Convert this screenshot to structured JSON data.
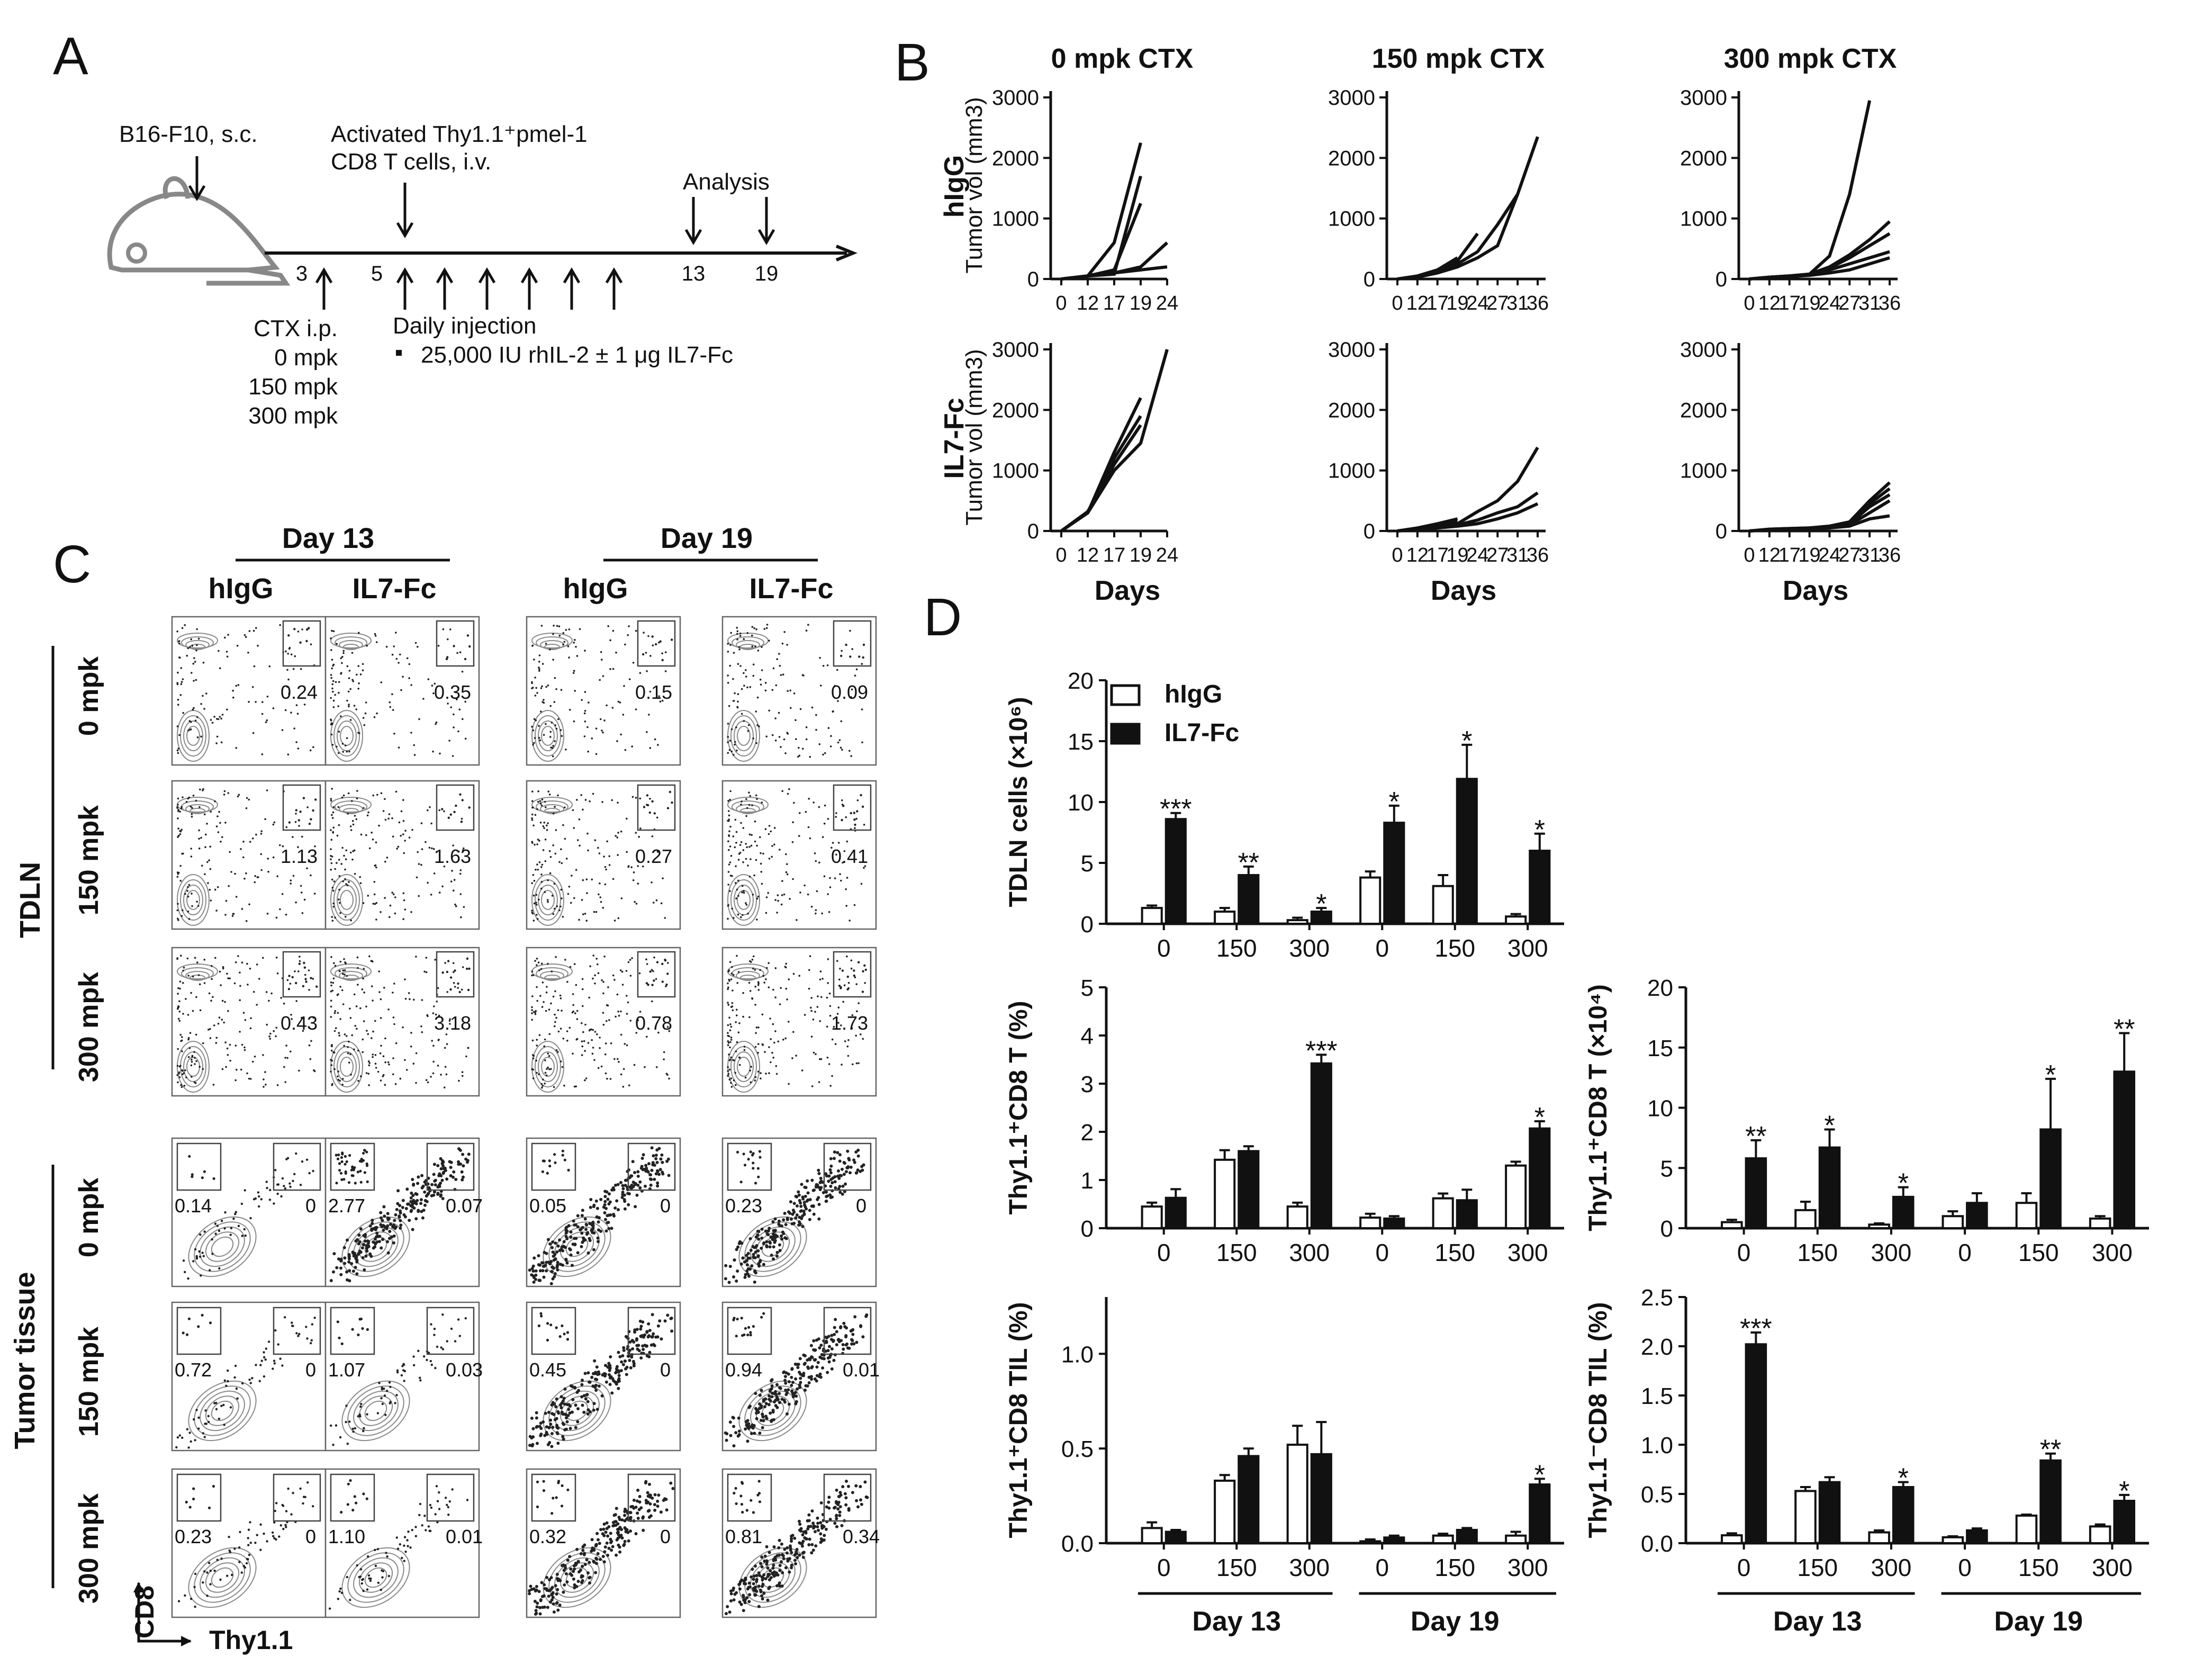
{
  "panelA": {
    "letter": "A",
    "tumor_label": "B16-F10, s.c.",
    "tcell_label_1": "Activated Thy1.1⁺pmel-1",
    "tcell_label_2": "CD8 T cells, i.v.",
    "analysis_label": "Analysis",
    "days": [
      "3",
      "5",
      "13",
      "19"
    ],
    "ctx_lines": [
      "CTX i.p.",
      "0 mpk",
      "150 mpk",
      "300 mpk"
    ],
    "daily_title": "Daily injection",
    "daily_item": "25,000 IU rhIL-2 ± 1 μg IL7-Fc"
  },
  "panelB": {
    "letter": "B",
    "col_titles": [
      "0 mpk CTX",
      "150 mpk CTX",
      "300 mpk CTX"
    ],
    "row_labels": [
      "hIgG",
      "IL7-Fc"
    ],
    "xlabel": "Days"
  },
  "panelC": {
    "letter": "C",
    "day_labels": [
      "Day 13",
      "Day 19"
    ],
    "col_labels": [
      "hIgG",
      "IL7-Fc",
      "hIgG",
      "IL7-Fc"
    ],
    "dose_labels": [
      "0 mpk",
      "150 mpk",
      "300 mpk"
    ],
    "group_labels": [
      "TDLN",
      "Tumor tissue"
    ],
    "y_axis_label": "CD8",
    "x_axis_label": "Thy1.1",
    "tdln_values": [
      [
        "0.24",
        "0.35",
        "0.15",
        "0.09"
      ],
      [
        "1.13",
        "1.63",
        "0.27",
        "0.41"
      ],
      [
        "0.43",
        "3.18",
        "0.78",
        "1.73"
      ]
    ],
    "tumor_left_values": [
      [
        "0.14",
        "2.77",
        "0.05",
        "0.23"
      ],
      [
        "0.72",
        "1.07",
        "0.45",
        "0.94"
      ],
      [
        "0.23",
        "1.10",
        "0.32",
        "0.81"
      ]
    ],
    "tumor_right_values": [
      [
        "0",
        "0.07",
        "0",
        "0"
      ],
      [
        "0",
        "0.03",
        "0",
        "0.01"
      ],
      [
        "0",
        "0.01",
        "0",
        "0.34"
      ]
    ]
  },
  "panelD": {
    "letter": "D",
    "legend": [
      "hIgG",
      "IL7-Fc"
    ],
    "day_labels": [
      "Day 13",
      "Day 19"
    ]
  },
  "chart_data": [
    {
      "type": "line",
      "id": "B-hIgG-0mpk",
      "title": "0 mpk CTX",
      "ylabel": "Tumor vol (mm3)",
      "xlabel": "",
      "x_ticks": [
        "0",
        "12",
        "17",
        "19",
        "24"
      ],
      "ylim": [
        0,
        3000
      ],
      "y_ticks": [
        "0",
        "1000",
        "2000",
        "3000"
      ],
      "series": [
        {
          "values": [
            0,
            50,
            150,
            1250
          ]
        },
        {
          "values": [
            0,
            50,
            600,
            2250
          ]
        },
        {
          "values": [
            0,
            50,
            80,
            1700
          ]
        },
        {
          "values": [
            0,
            50,
            100,
            200,
            600
          ]
        },
        {
          "values": [
            0,
            50,
            100,
            150,
            200
          ]
        }
      ]
    },
    {
      "type": "line",
      "id": "B-hIgG-150mpk",
      "title": "150 mpk CTX",
      "ylabel": "",
      "xlabel": "",
      "x_ticks": [
        "0",
        "12",
        "17",
        "19",
        "24",
        "27",
        "31",
        "36"
      ],
      "ylim": [
        0,
        3000
      ],
      "y_ticks": [
        "0",
        "1000",
        "2000",
        "3000"
      ],
      "series": [
        {
          "values": [
            0,
            40,
            120,
            250,
            450,
            900,
            1400,
            2350
          ]
        },
        {
          "values": [
            0,
            50,
            150,
            300,
            750
          ]
        },
        {
          "values": [
            0,
            30,
            100,
            200,
            350,
            550,
            1400
          ]
        },
        {
          "values": [
            0,
            40,
            150,
            350
          ]
        }
      ]
    },
    {
      "type": "line",
      "id": "B-hIgG-300mpk",
      "title": "300 mpk CTX",
      "ylabel": "",
      "xlabel": "",
      "x_ticks": [
        "0",
        "12",
        "17",
        "19",
        "24",
        "27",
        "31",
        "36"
      ],
      "ylim": [
        0,
        3000
      ],
      "y_ticks": [
        "0",
        "1000",
        "2000",
        "3000"
      ],
      "series": [
        {
          "values": [
            0,
            30,
            50,
            80,
            380,
            1400,
            2950
          ]
        },
        {
          "values": [
            0,
            30,
            50,
            80,
            200,
            400,
            650,
            950
          ]
        },
        {
          "values": [
            0,
            30,
            50,
            80,
            180,
            350,
            550,
            750
          ]
        },
        {
          "values": [
            0,
            30,
            50,
            70,
            150,
            250,
            350,
            450
          ]
        },
        {
          "values": [
            0,
            30,
            40,
            60,
            100,
            150,
            250,
            350
          ]
        }
      ]
    },
    {
      "type": "line",
      "id": "B-IL7Fc-0mpk",
      "title": "",
      "ylabel": "Tumor vol (mm3)",
      "xlabel": "Days",
      "x_ticks": [
        "0",
        "12",
        "17",
        "19",
        "24"
      ],
      "ylim": [
        0,
        3000
      ],
      "y_ticks": [
        "0",
        "1000",
        "2000",
        "3000"
      ],
      "series": [
        {
          "values": [
            0,
            300,
            1300,
            2200
          ]
        },
        {
          "values": [
            0,
            300,
            1200,
            1900
          ]
        },
        {
          "values": [
            0,
            320,
            1100,
            1750
          ]
        },
        {
          "values": [
            0,
            300,
            1000,
            1450,
            3000
          ]
        }
      ]
    },
    {
      "type": "line",
      "id": "B-IL7Fc-150mpk",
      "title": "",
      "ylabel": "",
      "xlabel": "Days",
      "x_ticks": [
        "0",
        "12",
        "17",
        "19",
        "24",
        "27",
        "31",
        "36"
      ],
      "ylim": [
        0,
        3000
      ],
      "y_ticks": [
        "0",
        "1000",
        "2000",
        "3000"
      ],
      "series": [
        {
          "values": [
            0,
            50,
            120,
            200
          ]
        },
        {
          "values": [
            0,
            40,
            100,
            150
          ]
        },
        {
          "values": [
            0,
            30,
            80,
            120,
            320,
            500,
            820,
            1380
          ]
        },
        {
          "values": [
            0,
            30,
            60,
            100,
            180,
            300,
            400,
            630
          ]
        },
        {
          "values": [
            0,
            20,
            50,
            80,
            120,
            200,
            300,
            450
          ]
        }
      ]
    },
    {
      "type": "line",
      "id": "B-IL7Fc-300mpk",
      "title": "",
      "ylabel": "",
      "xlabel": "Days",
      "x_ticks": [
        "0",
        "12",
        "17",
        "19",
        "24",
        "27",
        "31",
        "36"
      ],
      "ylim": [
        0,
        3000
      ],
      "y_ticks": [
        "0",
        "1000",
        "2000",
        "3000"
      ],
      "series": [
        {
          "values": [
            0,
            30,
            40,
            50,
            80,
            150,
            500,
            800
          ]
        },
        {
          "values": [
            0,
            30,
            40,
            50,
            80,
            130,
            450,
            700
          ]
        },
        {
          "values": [
            0,
            20,
            30,
            40,
            70,
            120,
            400,
            600
          ]
        },
        {
          "values": [
            0,
            20,
            30,
            40,
            60,
            100,
            300,
            500
          ]
        },
        {
          "values": [
            0,
            20,
            30,
            40,
            50,
            80,
            200,
            250
          ]
        }
      ]
    },
    {
      "type": "bar",
      "id": "D-TDLN-cells",
      "ylabel": "TDLN cells (×10⁶)",
      "categories": [
        "0",
        "150",
        "300",
        "0",
        "150",
        "300"
      ],
      "ylim": [
        0,
        20
      ],
      "y_ticks": [
        "0",
        "5",
        "10",
        "15",
        "20"
      ],
      "series": [
        {
          "name": "hIgG",
          "values": [
            1.3,
            1.0,
            0.3,
            3.8,
            3.1,
            0.6
          ],
          "errors": [
            0.2,
            0.3,
            0.2,
            0.5,
            0.9,
            0.2
          ]
        },
        {
          "name": "IL7-Fc",
          "values": [
            8.6,
            4.0,
            1.0,
            8.3,
            11.9,
            6.0
          ],
          "errors": [
            0.5,
            0.7,
            0.3,
            1.4,
            2.8,
            1.4
          ]
        }
      ],
      "significance": [
        "***",
        "**",
        "*",
        "*",
        "*",
        "*"
      ]
    },
    {
      "type": "bar",
      "id": "D-Thy11-pct",
      "ylabel": "Thy1.1⁺CD8 T (%)",
      "categories": [
        "0",
        "150",
        "300",
        "0",
        "150",
        "300"
      ],
      "ylim": [
        0,
        5
      ],
      "y_ticks": [
        "0",
        "1",
        "2",
        "3",
        "4",
        "5"
      ],
      "series": [
        {
          "name": "hIgG",
          "values": [
            0.45,
            1.42,
            0.45,
            0.22,
            0.62,
            1.3
          ],
          "errors": [
            0.08,
            0.2,
            0.08,
            0.08,
            0.1,
            0.08
          ]
        },
        {
          "name": "IL7-Fc",
          "values": [
            0.63,
            1.6,
            3.42,
            0.2,
            0.58,
            2.07
          ],
          "errors": [
            0.18,
            0.1,
            0.18,
            0.05,
            0.22,
            0.15
          ]
        }
      ],
      "significance": [
        "",
        "",
        "***",
        "",
        "",
        "*"
      ]
    },
    {
      "type": "bar",
      "id": "D-Thy11-count",
      "ylabel": "Thy1.1⁺CD8 T (×10⁴)",
      "categories": [
        "0",
        "150",
        "300",
        "0",
        "150",
        "300"
      ],
      "ylim": [
        0,
        20
      ],
      "y_ticks": [
        "0",
        "5",
        "10",
        "15",
        "20"
      ],
      "series": [
        {
          "name": "hIgG",
          "values": [
            0.5,
            1.5,
            0.3,
            1.0,
            2.1,
            0.8
          ],
          "errors": [
            0.2,
            0.7,
            0.1,
            0.4,
            0.8,
            0.2
          ]
        },
        {
          "name": "IL7-Fc",
          "values": [
            5.8,
            6.7,
            2.6,
            2.1,
            8.2,
            13.0
          ],
          "errors": [
            1.5,
            1.5,
            0.8,
            0.8,
            4.2,
            3.2
          ]
        }
      ],
      "significance": [
        "**",
        "*",
        "*",
        "",
        "*",
        "**"
      ]
    },
    {
      "type": "bar",
      "id": "D-Thy11pos-TIL",
      "ylabel": "Thy1.1⁺CD8 TIL (%)",
      "categories": [
        "0",
        "150",
        "300",
        "0",
        "150",
        "300"
      ],
      "ylim": [
        0,
        1.3
      ],
      "y_ticks": [
        "0.0",
        "0.5",
        "1.0"
      ],
      "series": [
        {
          "name": "hIgG",
          "values": [
            0.08,
            0.33,
            0.52,
            0.01,
            0.04,
            0.04
          ],
          "errors": [
            0.03,
            0.03,
            0.1,
            0.01,
            0.01,
            0.02
          ]
        },
        {
          "name": "IL7-Fc",
          "values": [
            0.06,
            0.46,
            0.47,
            0.03,
            0.07,
            0.31
          ],
          "errors": [
            0.01,
            0.04,
            0.17,
            0.01,
            0.01,
            0.03
          ]
        }
      ],
      "significance": [
        "",
        "",
        "",
        "",
        "",
        "*"
      ]
    },
    {
      "type": "bar",
      "id": "D-Thy11neg-TIL",
      "ylabel": "Thy1.1⁻CD8 TIL (%)",
      "categories": [
        "0",
        "150",
        "300",
        "0",
        "150",
        "300"
      ],
      "ylim": [
        0,
        2.5
      ],
      "y_ticks": [
        "0.0",
        "0.5",
        "1.0",
        "1.5",
        "2.0",
        "2.5"
      ],
      "series": [
        {
          "name": "hIgG",
          "values": [
            0.08,
            0.53,
            0.11,
            0.06,
            0.28,
            0.17
          ],
          "errors": [
            0.02,
            0.04,
            0.02,
            0.01,
            0.01,
            0.02
          ]
        },
        {
          "name": "IL7-Fc",
          "values": [
            2.02,
            0.62,
            0.57,
            0.13,
            0.84,
            0.43
          ],
          "errors": [
            0.12,
            0.05,
            0.05,
            0.02,
            0.07,
            0.06
          ]
        }
      ],
      "significance": [
        "***",
        "",
        "*",
        "",
        "**",
        "*"
      ]
    }
  ]
}
